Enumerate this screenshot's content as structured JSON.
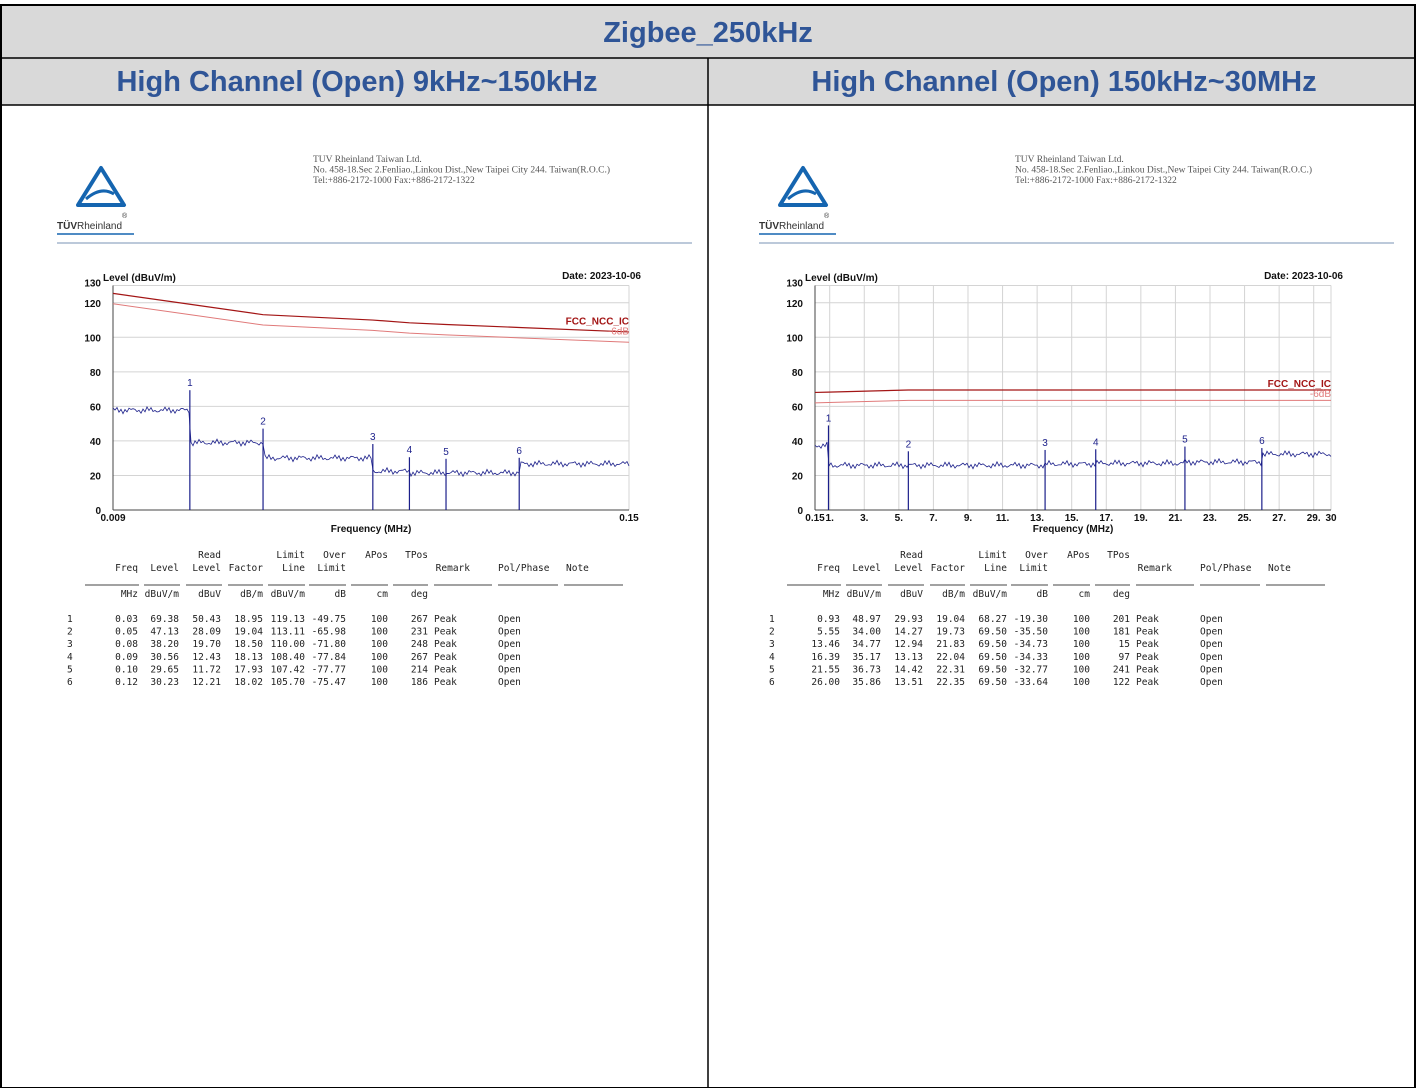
{
  "header": {
    "title": "Zigbee_250kHz"
  },
  "panels": [
    {
      "heading": "High Channel (Open) 9kHz~150kHz",
      "logo": {
        "brand": "TÜV",
        "name": "Rheinland",
        "mark": "®"
      },
      "company": {
        "lines": [
          "TUV Rheinland Taiwan Ltd.",
          "No. 458-18.Sec 2.Fenliao.,Linkou Dist.,New Taipei City 244. Taiwan(R.O.C.)",
          "Tel:+886-2172-1000 Fax:+886-2172-1322"
        ]
      },
      "chart": {
        "type": "line",
        "y_label": "Level (dBuV/m)",
        "date": "Date: 2023-10-06",
        "x_label": "Frequency (MHz)",
        "limit_label": "FCC_NCC_IC",
        "margin": {
          "label": "-6dB",
          "offset": -6
        },
        "xlim": [
          0.009,
          0.15
        ],
        "xticks": [
          0.009,
          0.15
        ],
        "ylim": [
          0,
          130
        ],
        "yticks": [
          0,
          20,
          40,
          60,
          80,
          100,
          120,
          130
        ],
        "grid": true,
        "colors": {
          "trace": "#1b1f8a",
          "limit": "#a31515",
          "margin": "#e07a7a"
        }
      },
      "table": {
        "header_top": [
          "Read",
          "Limit",
          "Over",
          "APos",
          "TPos"
        ],
        "header": [
          "Freq",
          "Level",
          "Level",
          "Factor",
          "Line",
          "Limit",
          "Remark",
          "Pol/Phase",
          "Note"
        ],
        "units": [
          "MHz",
          "dBuV/m",
          "dBuV",
          "dB/m",
          "dBuV/m",
          "dB",
          "cm",
          "deg"
        ],
        "rows": [
          [
            "1",
            "0.03",
            "69.38",
            "50.43",
            "18.95",
            "119.13",
            "-49.75",
            "100",
            "267",
            "Peak",
            "Open"
          ],
          [
            "2",
            "0.05",
            "47.13",
            "28.09",
            "19.04",
            "113.11",
            "-65.98",
            "100",
            "231",
            "Peak",
            "Open"
          ],
          [
            "3",
            "0.08",
            "38.20",
            "19.70",
            "18.50",
            "110.00",
            "-71.80",
            "100",
            "248",
            "Peak",
            "Open"
          ],
          [
            "4",
            "0.09",
            "30.56",
            "12.43",
            "18.13",
            "108.40",
            "-77.84",
            "100",
            "267",
            "Peak",
            "Open"
          ],
          [
            "5",
            "0.10",
            "29.65",
            "11.72",
            "17.93",
            "107.42",
            "-77.77",
            "100",
            "214",
            "Peak",
            "Open"
          ],
          [
            "6",
            "0.12",
            "30.23",
            "12.21",
            "18.02",
            "105.70",
            "-75.47",
            "100",
            "186",
            "Peak",
            "Open"
          ]
        ]
      }
    },
    {
      "heading": "High Channel (Open) 150kHz~30MHz",
      "logo": {
        "brand": "TÜV",
        "name": "Rheinland",
        "mark": "®"
      },
      "company": {
        "lines": [
          "TUV Rheinland Taiwan Ltd.",
          "No. 458-18.Sec 2.Fenliao.,Linkou Dist.,New Taipei City 244. Taiwan(R.O.C.)",
          "Tel:+886-2172-1000 Fax:+886-2172-1322"
        ]
      },
      "chart": {
        "type": "line",
        "y_label": "Level (dBuV/m)",
        "date": "Date: 2023-10-06",
        "x_label": "Frequency (MHz)",
        "limit_label": "FCC_NCC_IC",
        "margin": {
          "label": "-6dB",
          "offset": -6
        },
        "xlim": [
          0.15,
          30
        ],
        "xticks": [
          0.15,
          {
            "value": 1,
            "label": "1."
          },
          {
            "value": 3,
            "label": "3."
          },
          {
            "value": 5,
            "label": "5."
          },
          {
            "value": 7,
            "label": "7."
          },
          {
            "value": 9,
            "label": "9."
          },
          {
            "value": 11,
            "label": "11."
          },
          {
            "value": 13,
            "label": "13."
          },
          {
            "value": 15,
            "label": "15."
          },
          {
            "value": 17,
            "label": "17."
          },
          {
            "value": 19,
            "label": "19."
          },
          {
            "value": 21,
            "label": "21."
          },
          {
            "value": 23,
            "label": "23."
          },
          {
            "value": 25,
            "label": "25."
          },
          {
            "value": 27,
            "label": "27."
          },
          {
            "value": 29,
            "label": "29."
          },
          30
        ],
        "ylim": [
          0,
          130
        ],
        "yticks": [
          0,
          20,
          40,
          60,
          80,
          100,
          120,
          130
        ],
        "grid": true,
        "colors": {
          "trace": "#1b1f8a",
          "limit": "#a31515",
          "margin": "#e07a7a"
        }
      },
      "table": {
        "header_top": [
          "Read",
          "Limit",
          "Over",
          "APos",
          "TPos"
        ],
        "header": [
          "Freq",
          "Level",
          "Level",
          "Factor",
          "Line",
          "Limit",
          "Remark",
          "Pol/Phase",
          "Note"
        ],
        "units": [
          "MHz",
          "dBuV/m",
          "dBuV",
          "dB/m",
          "dBuV/m",
          "dB",
          "cm",
          "deg"
        ],
        "rows": [
          [
            "1",
            "0.93",
            "48.97",
            "29.93",
            "19.04",
            "68.27",
            "-19.30",
            "100",
            "201",
            "Peak",
            "Open"
          ],
          [
            "2",
            "5.55",
            "34.00",
            "14.27",
            "19.73",
            "69.50",
            "-35.50",
            "100",
            "181",
            "Peak",
            "Open"
          ],
          [
            "3",
            "13.46",
            "34.77",
            "12.94",
            "21.83",
            "69.50",
            "-34.73",
            "100",
            "15",
            "Peak",
            "Open"
          ],
          [
            "4",
            "16.39",
            "35.17",
            "13.13",
            "22.04",
            "69.50",
            "-34.33",
            "100",
            "97",
            "Peak",
            "Open"
          ],
          [
            "5",
            "21.55",
            "36.73",
            "14.42",
            "22.31",
            "69.50",
            "-32.77",
            "100",
            "241",
            "Peak",
            "Open"
          ],
          [
            "6",
            "26.00",
            "35.86",
            "13.51",
            "22.35",
            "69.50",
            "-33.64",
            "100",
            "122",
            "Peak",
            "Open"
          ]
        ]
      }
    }
  ]
}
